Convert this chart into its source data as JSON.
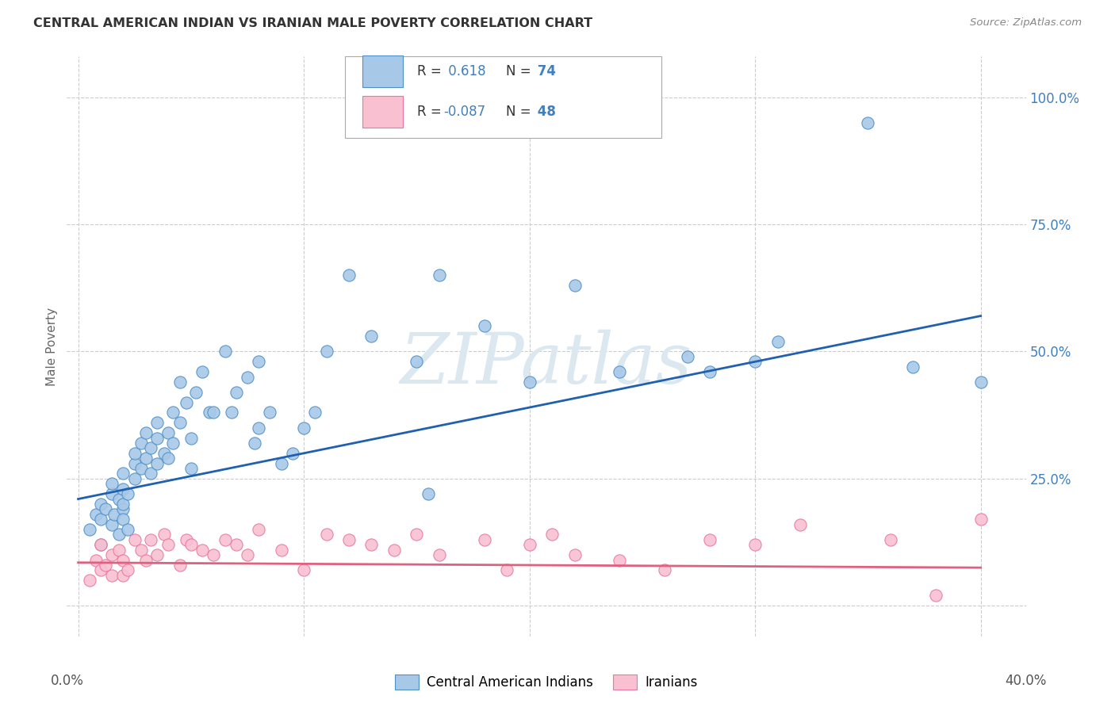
{
  "title": "CENTRAL AMERICAN INDIAN VS IRANIAN MALE POVERTY CORRELATION CHART",
  "source": "Source: ZipAtlas.com",
  "ylabel": "Male Poverty",
  "yticks": [
    0.0,
    0.25,
    0.5,
    0.75,
    1.0
  ],
  "ytick_labels": [
    "",
    "25.0%",
    "50.0%",
    "75.0%",
    "100.0%"
  ],
  "xticks": [
    0.0,
    0.1,
    0.2,
    0.3,
    0.4
  ],
  "xtick_labels": [
    "0.0%",
    "",
    "",
    "",
    "40.0%"
  ],
  "xlim": [
    -0.005,
    0.42
  ],
  "ylim": [
    -0.06,
    1.08
  ],
  "color_blue_fill": "#a8c8e8",
  "color_pink_fill": "#f8c0d0",
  "color_blue_edge": "#5090c8",
  "color_pink_edge": "#e878a0",
  "color_blue_line": "#2060b0",
  "color_pink_line": "#e06080",
  "color_grid": "#cccccc",
  "color_ytick": "#4080c0",
  "color_title": "#333333",
  "color_source": "#888888",
  "watermark_text": "ZIPatlas",
  "watermark_color": "#dce8f0",
  "blue_points_x": [
    0.005,
    0.008,
    0.01,
    0.01,
    0.01,
    0.012,
    0.015,
    0.015,
    0.015,
    0.016,
    0.018,
    0.018,
    0.02,
    0.02,
    0.02,
    0.02,
    0.02,
    0.022,
    0.022,
    0.025,
    0.025,
    0.025,
    0.028,
    0.028,
    0.03,
    0.03,
    0.032,
    0.032,
    0.035,
    0.035,
    0.035,
    0.038,
    0.04,
    0.04,
    0.042,
    0.042,
    0.045,
    0.045,
    0.048,
    0.05,
    0.05,
    0.052,
    0.055,
    0.058,
    0.06,
    0.065,
    0.068,
    0.07,
    0.075,
    0.078,
    0.08,
    0.08,
    0.085,
    0.09,
    0.095,
    0.1,
    0.105,
    0.11,
    0.12,
    0.13,
    0.15,
    0.155,
    0.16,
    0.18,
    0.2,
    0.22,
    0.24,
    0.27,
    0.28,
    0.3,
    0.31,
    0.35,
    0.37,
    0.4
  ],
  "blue_points_y": [
    0.15,
    0.18,
    0.2,
    0.17,
    0.12,
    0.19,
    0.22,
    0.24,
    0.16,
    0.18,
    0.21,
    0.14,
    0.23,
    0.19,
    0.17,
    0.26,
    0.2,
    0.15,
    0.22,
    0.28,
    0.25,
    0.3,
    0.27,
    0.32,
    0.29,
    0.34,
    0.31,
    0.26,
    0.33,
    0.28,
    0.36,
    0.3,
    0.34,
    0.29,
    0.32,
    0.38,
    0.36,
    0.44,
    0.4,
    0.33,
    0.27,
    0.42,
    0.46,
    0.38,
    0.38,
    0.5,
    0.38,
    0.42,
    0.45,
    0.32,
    0.48,
    0.35,
    0.38,
    0.28,
    0.3,
    0.35,
    0.38,
    0.5,
    0.65,
    0.53,
    0.48,
    0.22,
    0.65,
    0.55,
    0.44,
    0.63,
    0.46,
    0.49,
    0.46,
    0.48,
    0.52,
    0.95,
    0.47,
    0.44
  ],
  "pink_points_x": [
    0.005,
    0.008,
    0.01,
    0.01,
    0.012,
    0.015,
    0.015,
    0.018,
    0.02,
    0.02,
    0.022,
    0.025,
    0.028,
    0.03,
    0.032,
    0.035,
    0.038,
    0.04,
    0.045,
    0.048,
    0.05,
    0.055,
    0.06,
    0.065,
    0.07,
    0.075,
    0.08,
    0.09,
    0.1,
    0.11,
    0.12,
    0.13,
    0.14,
    0.15,
    0.16,
    0.18,
    0.19,
    0.2,
    0.21,
    0.22,
    0.24,
    0.26,
    0.28,
    0.3,
    0.32,
    0.36,
    0.38,
    0.4
  ],
  "pink_points_y": [
    0.05,
    0.09,
    0.07,
    0.12,
    0.08,
    0.1,
    0.06,
    0.11,
    0.09,
    0.06,
    0.07,
    0.13,
    0.11,
    0.09,
    0.13,
    0.1,
    0.14,
    0.12,
    0.08,
    0.13,
    0.12,
    0.11,
    0.1,
    0.13,
    0.12,
    0.1,
    0.15,
    0.11,
    0.07,
    0.14,
    0.13,
    0.12,
    0.11,
    0.14,
    0.1,
    0.13,
    0.07,
    0.12,
    0.14,
    0.1,
    0.09,
    0.07,
    0.13,
    0.12,
    0.16,
    0.13,
    0.02,
    0.17
  ],
  "blue_line_x": [
    0.0,
    0.4
  ],
  "blue_line_y": [
    0.21,
    0.57
  ],
  "pink_line_x": [
    0.0,
    0.4
  ],
  "pink_line_y": [
    0.085,
    0.075
  ],
  "legend1_r": "R =",
  "legend1_rv": "0.618",
  "legend1_n": "N =",
  "legend1_nv": "74",
  "legend2_r": "R =",
  "legend2_rv": "-0.087",
  "legend2_n": "N =",
  "legend2_nv": "48"
}
